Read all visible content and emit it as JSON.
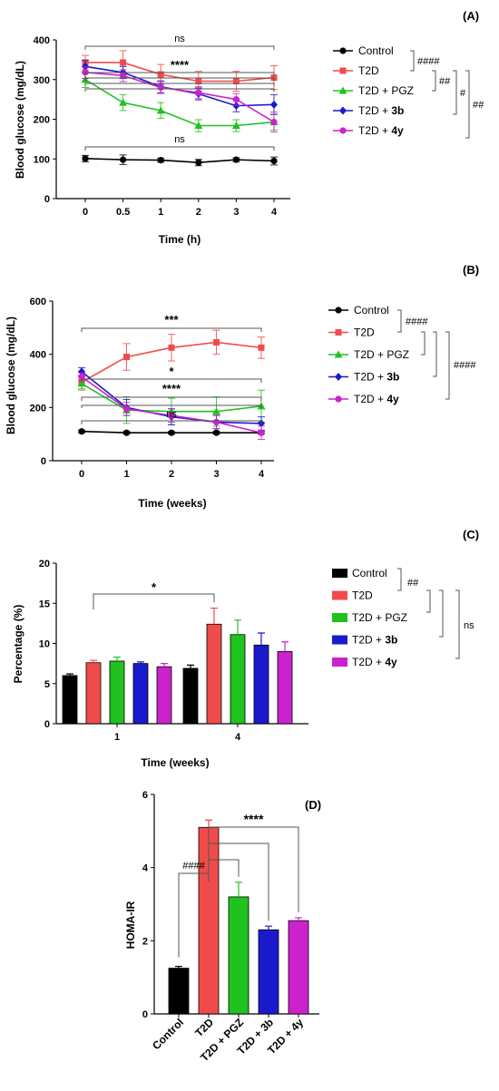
{
  "colors": {
    "Control": "#000000",
    "T2D": "#f04b4b",
    "T2D + PGZ": "#1fc21f",
    "T2D + 3b": "#1a1acc",
    "T2D + 4y": "#cc22cc"
  },
  "chart_data": [
    {
      "panel": "(A)",
      "type": "line",
      "xlabel": "Time (h)",
      "ylabel": "Blood glucose (mg/dL)",
      "x": [
        "0",
        "0.5",
        "1",
        "2",
        "3",
        "4"
      ],
      "ylim": [
        0,
        400
      ],
      "yticks": [
        "0",
        "100",
        "200",
        "300",
        "400"
      ],
      "grid": false,
      "legend": "right",
      "series": [
        {
          "name": "Control",
          "marker": "circle",
          "values": [
            101,
            98,
            97,
            91,
            98,
            95
          ],
          "errors": [
            8,
            12,
            5,
            8,
            5,
            10
          ]
        },
        {
          "name": "T2D",
          "marker": "square",
          "values": [
            343,
            343,
            313,
            296,
            296,
            305
          ],
          "errors": [
            18,
            30,
            25,
            25,
            25,
            30
          ]
        },
        {
          "name": "T2D + PGZ",
          "marker": "triangle",
          "values": [
            300,
            242,
            222,
            184,
            184,
            193
          ],
          "errors": [
            20,
            20,
            20,
            15,
            15,
            20
          ]
        },
        {
          "name": "T2D + 3b",
          "marker": "diamond",
          "values": [
            333,
            318,
            282,
            264,
            234,
            237
          ],
          "errors": [
            15,
            15,
            15,
            15,
            15,
            25
          ]
        },
        {
          "name": "T2D + 4y",
          "marker": "circle",
          "values": [
            318,
            310,
            280,
            267,
            250,
            193
          ],
          "errors": [
            15,
            15,
            15,
            15,
            15,
            25
          ]
        }
      ],
      "annotations": [
        "ns",
        "****",
        "ns"
      ],
      "legend_groups": [
        "####",
        "##",
        "#",
        "##"
      ]
    },
    {
      "panel": "(B)",
      "type": "line",
      "xlabel": "Time (weeks)",
      "ylabel": "Blood glucose (mg/dL)",
      "x": [
        "0",
        "1",
        "2",
        "3",
        "4"
      ],
      "ylim": [
        0,
        600
      ],
      "yticks": [
        "0",
        "200",
        "400",
        "600"
      ],
      "grid": false,
      "legend": "right",
      "series": [
        {
          "name": "Control",
          "marker": "circle",
          "values": [
            110,
            105,
            105,
            105,
            105
          ],
          "errors": [
            5,
            5,
            5,
            5,
            5
          ]
        },
        {
          "name": "T2D",
          "marker": "square",
          "values": [
            295,
            390,
            425,
            445,
            425
          ],
          "errors": [
            25,
            50,
            50,
            45,
            40
          ]
        },
        {
          "name": "T2D + PGZ",
          "marker": "triangle",
          "values": [
            290,
            190,
            185,
            185,
            205
          ],
          "errors": [
            25,
            50,
            50,
            55,
            60
          ]
        },
        {
          "name": "T2D + 3b",
          "marker": "diamond",
          "values": [
            335,
            200,
            165,
            145,
            140
          ],
          "errors": [
            15,
            30,
            30,
            25,
            25
          ]
        },
        {
          "name": "T2D + 4y",
          "marker": "circle",
          "values": [
            315,
            195,
            170,
            145,
            105
          ],
          "errors": [
            15,
            25,
            25,
            25,
            25
          ]
        }
      ],
      "annotations": [
        "***",
        "*",
        "****",
        "ns"
      ],
      "legend_groups": [
        "####",
        "####"
      ]
    },
    {
      "panel": "(C)",
      "type": "bar",
      "xlabel": "Time (weeks)",
      "ylabel": "Percentage (%)",
      "categories": [
        "1",
        "4"
      ],
      "ylim": [
        0,
        20
      ],
      "yticks": [
        "0",
        "5",
        "10",
        "15",
        "20"
      ],
      "grid": false,
      "legend": "right",
      "series": [
        {
          "name": "Control",
          "values": [
            6.0,
            6.9
          ],
          "errors": [
            0.2,
            0.4
          ]
        },
        {
          "name": "T2D",
          "values": [
            7.6,
            12.4
          ],
          "errors": [
            0.3,
            2.0
          ]
        },
        {
          "name": "T2D + PGZ",
          "values": [
            7.8,
            11.1
          ],
          "errors": [
            0.5,
            1.8
          ]
        },
        {
          "name": "T2D + 3b",
          "values": [
            7.5,
            9.8
          ],
          "errors": [
            0.2,
            1.5
          ]
        },
        {
          "name": "T2D + 4y",
          "values": [
            7.1,
            9.0
          ],
          "errors": [
            0.4,
            1.2
          ]
        }
      ],
      "annotations": [
        "*"
      ],
      "legend_groups": [
        "##",
        "ns"
      ]
    },
    {
      "panel": "(D)",
      "type": "bar",
      "xlabel": "",
      "ylabel": "HOMA-IR",
      "categories": [
        "Control",
        "T2D",
        "T2D + PGZ",
        "T2D + 3b",
        "T2D + 4y"
      ],
      "values": [
        1.25,
        5.1,
        3.2,
        2.3,
        2.55
      ],
      "errors": [
        0.05,
        0.2,
        0.4,
        0.1,
        0.08
      ],
      "ylim": [
        0,
        6
      ],
      "yticks": [
        "0",
        "2",
        "4",
        "6"
      ],
      "grid": false,
      "annotations": [
        "####",
        "****"
      ]
    }
  ]
}
